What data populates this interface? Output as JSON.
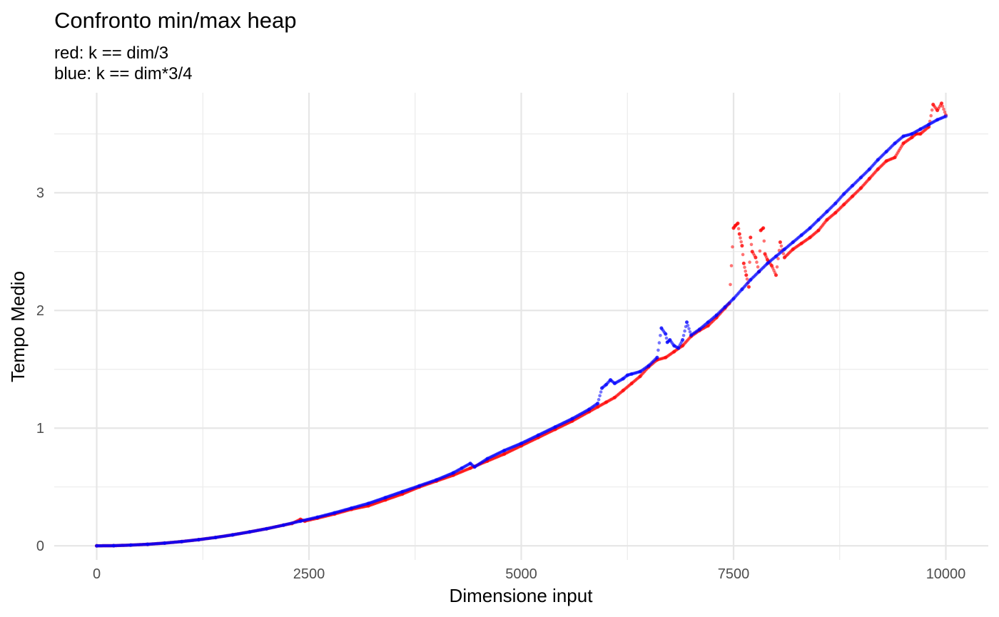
{
  "chart_data": {
    "type": "scatter",
    "title": "Confronto min/max heap",
    "subtitle": "red: k == dim/3\nblue: k == dim*3/4",
    "xlabel": "Dimensione input",
    "ylabel": "Tempo Medio",
    "xlim": [
      -500,
      10500
    ],
    "ylim": [
      -0.12,
      3.85
    ],
    "x_ticks": [
      0,
      2500,
      5000,
      7500,
      10000
    ],
    "x_tick_labels": [
      "0",
      "2500",
      "5000",
      "7500",
      "10000"
    ],
    "y_ticks": [
      0,
      1,
      2,
      3
    ],
    "y_tick_labels": [
      "0",
      "1",
      "2",
      "3"
    ],
    "grid": true,
    "legend": "none",
    "series": [
      {
        "color": "#ff0000",
        "values_note": "",
        "points": [
          [
            0,
            0
          ],
          [
            200,
            0.001
          ],
          [
            400,
            0.006
          ],
          [
            600,
            0.013
          ],
          [
            800,
            0.023
          ],
          [
            1000,
            0.036
          ],
          [
            1200,
            0.052
          ],
          [
            1400,
            0.071
          ],
          [
            1600,
            0.093
          ],
          [
            1800,
            0.118
          ],
          [
            2000,
            0.145
          ],
          [
            2200,
            0.176
          ],
          [
            2300,
            0.19
          ],
          [
            2400,
            0.225
          ],
          [
            2450,
            0.21
          ],
          [
            2600,
            0.235
          ],
          [
            2800,
            0.27
          ],
          [
            3000,
            0.31
          ],
          [
            3200,
            0.34
          ],
          [
            3400,
            0.39
          ],
          [
            3600,
            0.44
          ],
          [
            3800,
            0.5
          ],
          [
            4000,
            0.55
          ],
          [
            4200,
            0.6
          ],
          [
            4400,
            0.66
          ],
          [
            4600,
            0.72
          ],
          [
            4800,
            0.78
          ],
          [
            5000,
            0.85
          ],
          [
            5200,
            0.92
          ],
          [
            5400,
            0.99
          ],
          [
            5600,
            1.06
          ],
          [
            5800,
            1.14
          ],
          [
            5900,
            1.18
          ],
          [
            6000,
            1.22
          ],
          [
            6100,
            1.26
          ],
          [
            6200,
            1.32
          ],
          [
            6300,
            1.38
          ],
          [
            6400,
            1.44
          ],
          [
            6500,
            1.52
          ],
          [
            6600,
            1.58
          ],
          [
            6700,
            1.6
          ],
          [
            6800,
            1.65
          ],
          [
            6900,
            1.7
          ],
          [
            7000,
            1.78
          ],
          [
            7100,
            1.83
          ],
          [
            7200,
            1.87
          ],
          [
            7300,
            1.94
          ],
          [
            7400,
            2.02
          ],
          [
            7450,
            2.06
          ],
          [
            7500,
            2.7
          ],
          [
            7520,
            2.72
          ],
          [
            7550,
            2.74
          ],
          [
            7570,
            2.65
          ],
          [
            7600,
            2.55
          ],
          [
            7620,
            2.4
          ],
          [
            7650,
            2.3
          ],
          [
            7680,
            2.2
          ],
          [
            7700,
            2.62
          ],
          [
            7720,
            2.5
          ],
          [
            7760,
            2.45
          ],
          [
            7800,
            2.33
          ],
          [
            7820,
            2.68
          ],
          [
            7850,
            2.7
          ],
          [
            7870,
            2.48
          ],
          [
            7900,
            2.43
          ],
          [
            7950,
            2.38
          ],
          [
            8000,
            2.3
          ],
          [
            8050,
            2.58
          ],
          [
            8100,
            2.45
          ],
          [
            8200,
            2.52
          ],
          [
            8300,
            2.57
          ],
          [
            8400,
            2.62
          ],
          [
            8500,
            2.68
          ],
          [
            8600,
            2.77
          ],
          [
            8700,
            2.83
          ],
          [
            8800,
            2.9
          ],
          [
            8900,
            2.97
          ],
          [
            9000,
            3.04
          ],
          [
            9100,
            3.12
          ],
          [
            9200,
            3.2
          ],
          [
            9300,
            3.27
          ],
          [
            9400,
            3.3
          ],
          [
            9500,
            3.42
          ],
          [
            9600,
            3.47
          ],
          [
            9650,
            3.5
          ],
          [
            9700,
            3.5
          ],
          [
            9800,
            3.56
          ],
          [
            9850,
            3.75
          ],
          [
            9900,
            3.7
          ],
          [
            9950,
            3.76
          ],
          [
            10000,
            3.66
          ]
        ]
      },
      {
        "color": "#0000ff",
        "values_note": "",
        "points": [
          [
            0,
            0
          ],
          [
            200,
            0.001
          ],
          [
            400,
            0.006
          ],
          [
            600,
            0.013
          ],
          [
            800,
            0.023
          ],
          [
            1000,
            0.036
          ],
          [
            1200,
            0.052
          ],
          [
            1400,
            0.071
          ],
          [
            1600,
            0.093
          ],
          [
            1800,
            0.118
          ],
          [
            2000,
            0.145
          ],
          [
            2200,
            0.176
          ],
          [
            2400,
            0.21
          ],
          [
            2600,
            0.243
          ],
          [
            2800,
            0.28
          ],
          [
            3000,
            0.32
          ],
          [
            3200,
            0.36
          ],
          [
            3400,
            0.41
          ],
          [
            3600,
            0.46
          ],
          [
            3800,
            0.51
          ],
          [
            4000,
            0.56
          ],
          [
            4200,
            0.62
          ],
          [
            4300,
            0.66
          ],
          [
            4400,
            0.7
          ],
          [
            4450,
            0.67
          ],
          [
            4600,
            0.74
          ],
          [
            4800,
            0.81
          ],
          [
            5000,
            0.87
          ],
          [
            5200,
            0.94
          ],
          [
            5400,
            1.01
          ],
          [
            5600,
            1.08
          ],
          [
            5800,
            1.16
          ],
          [
            5900,
            1.21
          ],
          [
            5950,
            1.34
          ],
          [
            6000,
            1.37
          ],
          [
            6050,
            1.41
          ],
          [
            6100,
            1.38
          ],
          [
            6200,
            1.42
          ],
          [
            6250,
            1.45
          ],
          [
            6300,
            1.46
          ],
          [
            6400,
            1.48
          ],
          [
            6500,
            1.53
          ],
          [
            6600,
            1.6
          ],
          [
            6650,
            1.85
          ],
          [
            6700,
            1.8
          ],
          [
            6720,
            1.73
          ],
          [
            6750,
            1.75
          ],
          [
            6800,
            1.7
          ],
          [
            6850,
            1.68
          ],
          [
            6900,
            1.75
          ],
          [
            6950,
            1.9
          ],
          [
            7000,
            1.79
          ],
          [
            7100,
            1.84
          ],
          [
            7200,
            1.9
          ],
          [
            7300,
            1.96
          ],
          [
            7400,
            2.03
          ],
          [
            7500,
            2.1
          ],
          [
            7600,
            2.18
          ],
          [
            7700,
            2.26
          ],
          [
            7800,
            2.33
          ],
          [
            7900,
            2.4
          ],
          [
            8000,
            2.46
          ],
          [
            8100,
            2.52
          ],
          [
            8200,
            2.58
          ],
          [
            8300,
            2.64
          ],
          [
            8400,
            2.7
          ],
          [
            8500,
            2.77
          ],
          [
            8600,
            2.84
          ],
          [
            8700,
            2.91
          ],
          [
            8800,
            2.99
          ],
          [
            8900,
            3.06
          ],
          [
            9000,
            3.13
          ],
          [
            9100,
            3.2
          ],
          [
            9200,
            3.28
          ],
          [
            9300,
            3.35
          ],
          [
            9400,
            3.42
          ],
          [
            9500,
            3.48
          ],
          [
            9600,
            3.5
          ],
          [
            9700,
            3.54
          ],
          [
            9800,
            3.58
          ],
          [
            9900,
            3.62
          ],
          [
            10000,
            3.65
          ]
        ]
      }
    ]
  }
}
